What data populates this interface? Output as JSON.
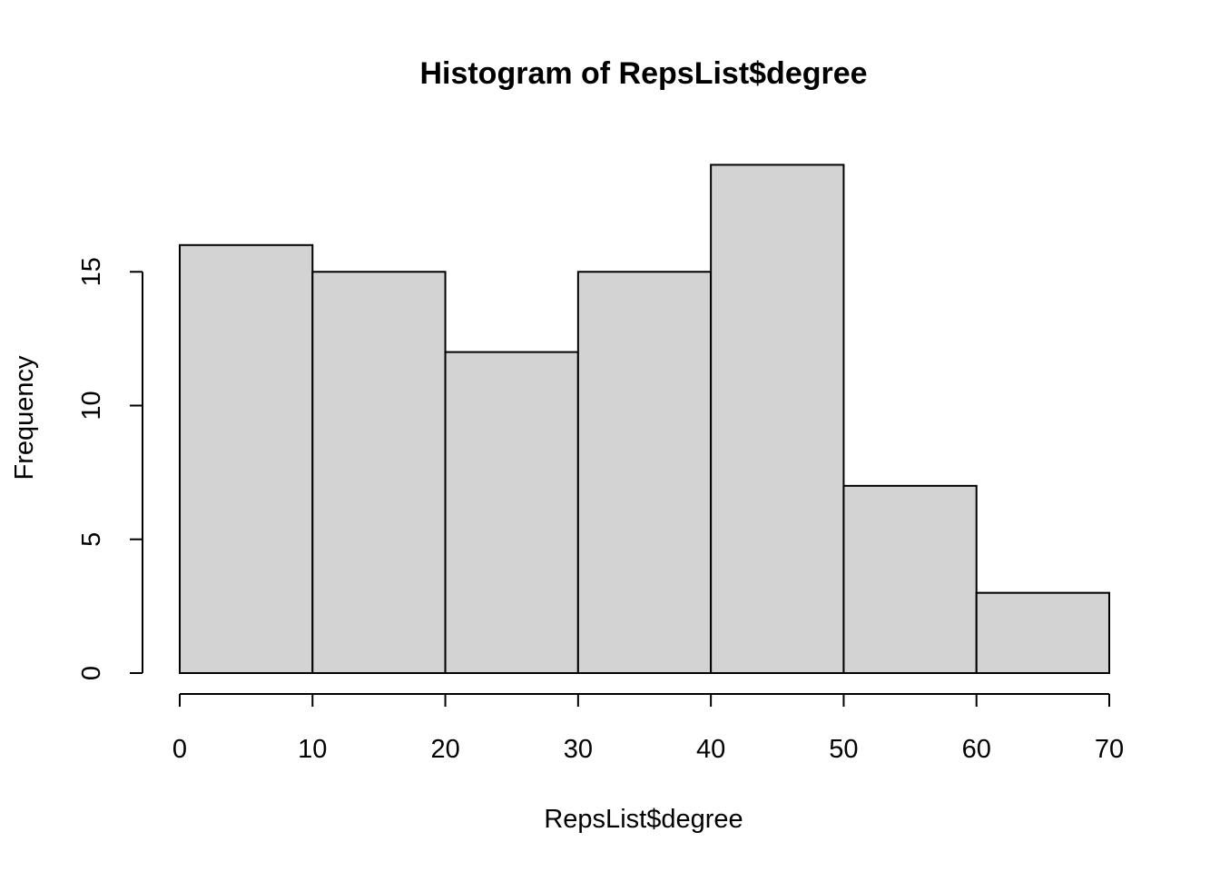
{
  "chart_data": {
    "type": "bar",
    "subtype": "histogram",
    "title": "Histogram of RepsList$degree",
    "xlabel": "RepsList$degree",
    "ylabel": "Frequency",
    "bins": [
      {
        "from": 0,
        "to": 10,
        "count": 16
      },
      {
        "from": 10,
        "to": 20,
        "count": 15
      },
      {
        "from": 20,
        "to": 30,
        "count": 12
      },
      {
        "from": 30,
        "to": 40,
        "count": 15
      },
      {
        "from": 40,
        "to": 50,
        "count": 19
      },
      {
        "from": 50,
        "to": 60,
        "count": 7
      },
      {
        "from": 60,
        "to": 70,
        "count": 3
      }
    ],
    "xlim": [
      0,
      70
    ],
    "ylim": [
      0,
      19
    ],
    "x_ticks": [
      0,
      10,
      20,
      30,
      40,
      50,
      60,
      70
    ],
    "y_ticks": [
      0,
      5,
      10,
      15
    ],
    "grid": false,
    "legend": "none",
    "bar_fill": "#d3d3d3",
    "bar_stroke": "#000000"
  }
}
